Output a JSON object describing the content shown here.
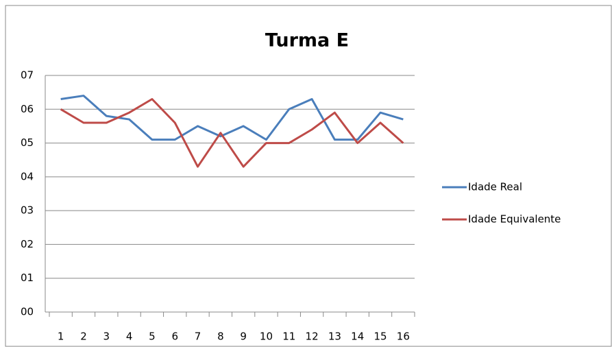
{
  "chart_data": {
    "type": "line",
    "title": "Turma E",
    "categories": [
      "1",
      "2",
      "3",
      "4",
      "5",
      "6",
      "7",
      "8",
      "9",
      "10",
      "11",
      "12",
      "13",
      "14",
      "15",
      "16"
    ],
    "series": [
      {
        "name": "Idade Real",
        "color": "#4a7ebb",
        "values": [
          6.3,
          6.4,
          5.8,
          5.7,
          5.1,
          5.1,
          5.5,
          5.2,
          5.5,
          5.1,
          6.0,
          6.3,
          5.1,
          5.1,
          5.9,
          5.7
        ]
      },
      {
        "name": "Idade Equivalente",
        "color": "#be4b48",
        "values": [
          6.0,
          5.6,
          5.6,
          5.9,
          6.3,
          5.6,
          4.3,
          5.3,
          4.3,
          5.0,
          5.0,
          5.4,
          5.9,
          5.0,
          5.6,
          5.0
        ]
      }
    ],
    "ylim": [
      0,
      7
    ],
    "yticks": [
      {
        "value": 0,
        "label": "00"
      },
      {
        "value": 1,
        "label": "01"
      },
      {
        "value": 2,
        "label": "02"
      },
      {
        "value": 3,
        "label": "03"
      },
      {
        "value": 4,
        "label": "04"
      },
      {
        "value": 5,
        "label": "05"
      },
      {
        "value": 6,
        "label": "06"
      },
      {
        "value": 7,
        "label": "07"
      }
    ],
    "grid": true,
    "legend": "right"
  }
}
